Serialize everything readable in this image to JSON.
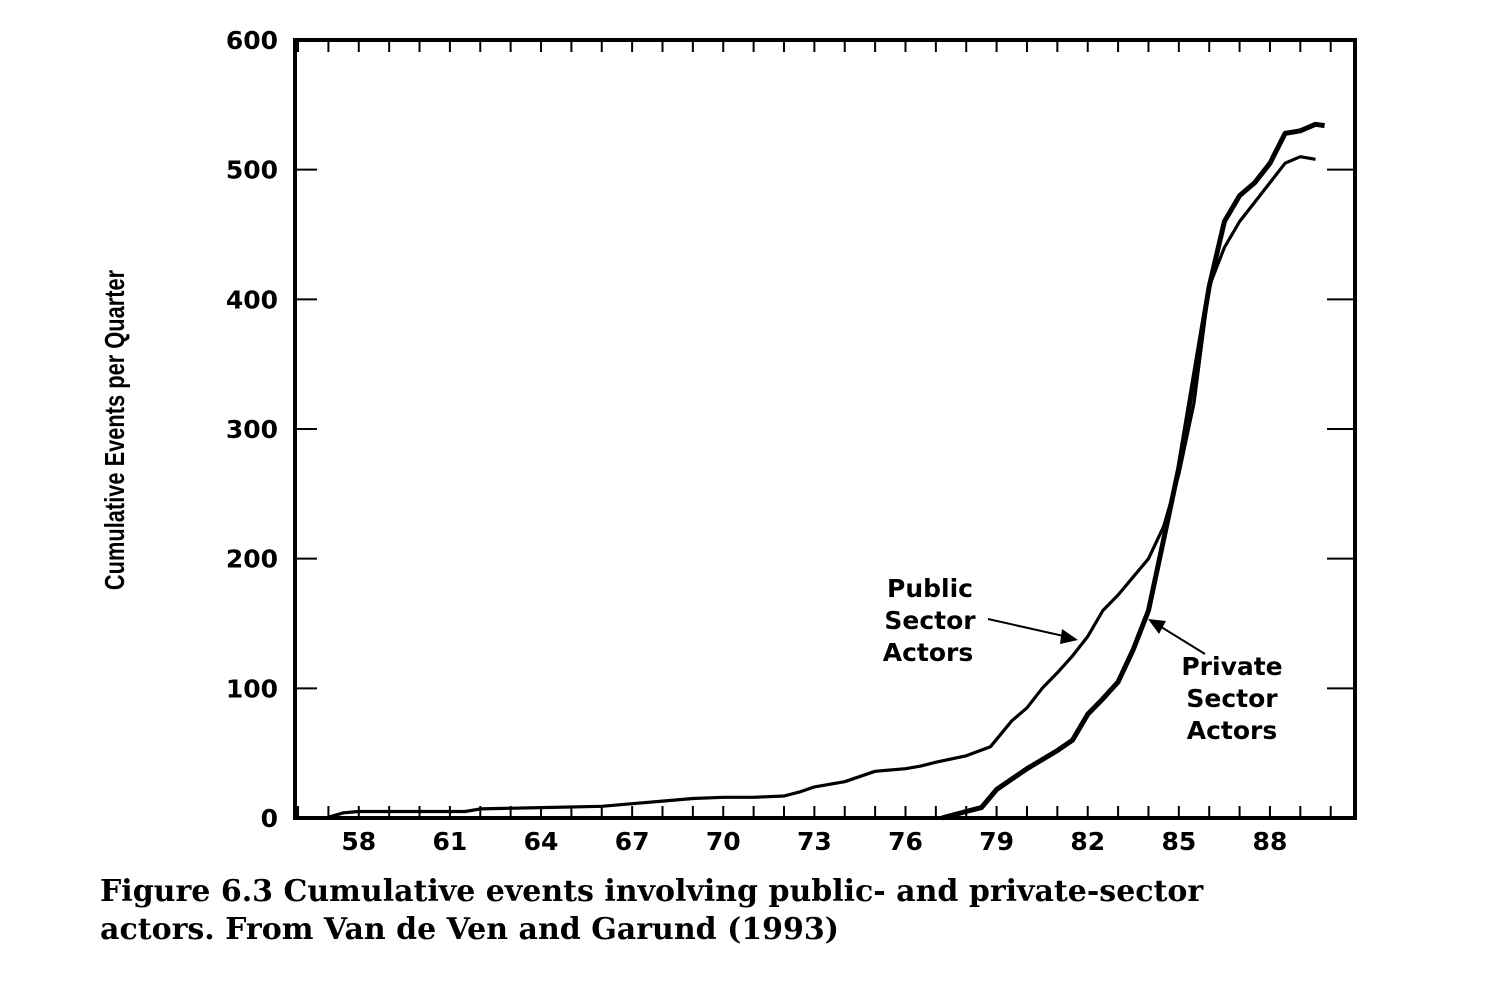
{
  "chart_data": {
    "type": "line",
    "title": "",
    "xlabel": "",
    "ylabel": "Cumulative Events per Quarter",
    "xlim": [
      55.9,
      90.8
    ],
    "ylim": [
      0,
      600
    ],
    "x_ticks": [
      "58",
      "61",
      "64",
      "67",
      "70",
      "73",
      "76",
      "79",
      "82",
      "85",
      "88"
    ],
    "y_ticks": [
      "0",
      "100",
      "200",
      "300",
      "400",
      "500",
      "600"
    ],
    "grid": false,
    "series": [
      {
        "name": "Public Sector Actors",
        "annotation_lines": [
          "Public",
          "Sector",
          "Actors"
        ],
        "points": [
          [
            56.9,
            0
          ],
          [
            57.5,
            4
          ],
          [
            58,
            5
          ],
          [
            60,
            5
          ],
          [
            61.5,
            5
          ],
          [
            62,
            7
          ],
          [
            64,
            8
          ],
          [
            66,
            9
          ],
          [
            67,
            11
          ],
          [
            68,
            13
          ],
          [
            69,
            15
          ],
          [
            70,
            16
          ],
          [
            71,
            16
          ],
          [
            72,
            17
          ],
          [
            72.5,
            20
          ],
          [
            73,
            24
          ],
          [
            74,
            28
          ],
          [
            75,
            36
          ],
          [
            76,
            38
          ],
          [
            76.5,
            40
          ],
          [
            77,
            43
          ],
          [
            78,
            48
          ],
          [
            78.8,
            55
          ],
          [
            79.5,
            75
          ],
          [
            80,
            85
          ],
          [
            80.5,
            100
          ],
          [
            81,
            112
          ],
          [
            81.5,
            125
          ],
          [
            82,
            140
          ],
          [
            82.5,
            160
          ],
          [
            83,
            172
          ],
          [
            83.5,
            186
          ],
          [
            84,
            200
          ],
          [
            84.5,
            225
          ],
          [
            85,
            265
          ],
          [
            85.5,
            320
          ],
          [
            86,
            410
          ],
          [
            86.5,
            440
          ],
          [
            87,
            460
          ],
          [
            87.5,
            475
          ],
          [
            88,
            490
          ],
          [
            88.5,
            505
          ],
          [
            89,
            510
          ],
          [
            89.5,
            508
          ]
        ]
      },
      {
        "name": "Private Sector Actors",
        "annotation_lines": [
          "Private",
          "Sector",
          "Actors"
        ],
        "points": [
          [
            77.2,
            0
          ],
          [
            78,
            5
          ],
          [
            78.5,
            8
          ],
          [
            79,
            22
          ],
          [
            79.5,
            30
          ],
          [
            80,
            38
          ],
          [
            80.5,
            45
          ],
          [
            81,
            52
          ],
          [
            81.5,
            60
          ],
          [
            82,
            80
          ],
          [
            82.5,
            92
          ],
          [
            83,
            105
          ],
          [
            83.5,
            130
          ],
          [
            84,
            160
          ],
          [
            84.5,
            215
          ],
          [
            85,
            270
          ],
          [
            85.5,
            340
          ],
          [
            86,
            410
          ],
          [
            86.5,
            460
          ],
          [
            87,
            480
          ],
          [
            87.5,
            490
          ],
          [
            88,
            505
          ],
          [
            88.5,
            528
          ],
          [
            89,
            530
          ],
          [
            89.5,
            535
          ],
          [
            89.8,
            534
          ]
        ]
      }
    ]
  },
  "caption": {
    "line1": "Figure 6.3  Cumulative events involving public- and private-sector",
    "line2": "actors. From Van de Ven and Garund (1993)"
  }
}
